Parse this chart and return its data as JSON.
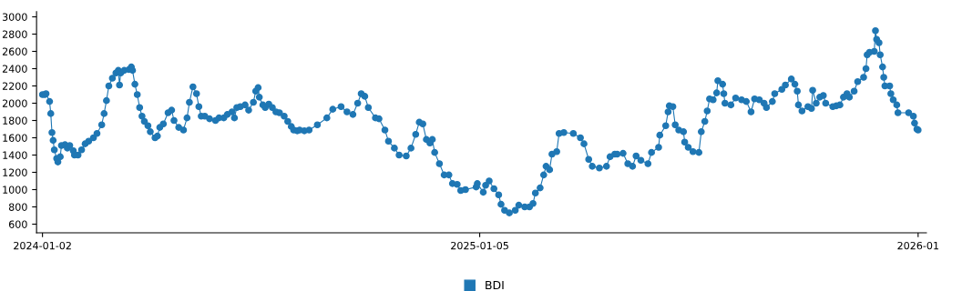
{
  "chart_data": {
    "type": "line",
    "marker": "circle",
    "line_style": "solid",
    "grid": false,
    "legend": "bottom",
    "xlim": [
      "2023-12-28",
      "2026-01-17"
    ],
    "xticks": [
      {
        "value": "2024-01-02",
        "label": "2024-01-02"
      },
      {
        "value": "2025-01-05",
        "label": "2025-01-05"
      },
      {
        "value": "2026-01-10",
        "label": "2026-01"
      }
    ],
    "ylim": [
      500,
      3060
    ],
    "yticks": [
      600,
      800,
      1000,
      1200,
      1400,
      1600,
      1800,
      2000,
      2200,
      2400,
      2600,
      2800,
      3000
    ],
    "x": [
      "2024-01-02",
      "2024-01-04",
      "2024-01-05",
      "2024-01-08",
      "2024-01-09",
      "2024-01-10",
      "2024-01-11",
      "2024-01-12",
      "2024-01-14",
      "2024-01-15",
      "2024-01-17",
      "2024-01-18",
      "2024-01-21",
      "2024-01-23",
      "2024-01-25",
      "2024-01-28",
      "2024-01-29",
      "2024-02-01",
      "2024-02-04",
      "2024-02-07",
      "2024-02-10",
      "2024-02-14",
      "2024-02-17",
      "2024-02-21",
      "2024-02-23",
      "2024-02-25",
      "2024-02-27",
      "2024-03-01",
      "2024-03-04",
      "2024-03-06",
      "2024-03-07",
      "2024-03-08",
      "2024-03-11",
      "2024-03-15",
      "2024-03-17",
      "2024-03-18",
      "2024-03-20",
      "2024-03-22",
      "2024-03-24",
      "2024-03-26",
      "2024-03-28",
      "2024-03-31",
      "2024-04-02",
      "2024-04-06",
      "2024-04-08",
      "2024-04-10",
      "2024-04-13",
      "2024-04-17",
      "2024-04-20",
      "2024-04-22",
      "2024-04-26",
      "2024-04-30",
      "2024-05-03",
      "2024-05-05",
      "2024-05-08",
      "2024-05-11",
      "2024-05-13",
      "2024-05-15",
      "2024-05-18",
      "2024-05-22",
      "2024-05-27",
      "2024-05-30",
      "2024-06-03",
      "2024-06-06",
      "2024-06-10",
      "2024-06-12",
      "2024-06-14",
      "2024-06-17",
      "2024-06-21",
      "2024-06-24",
      "2024-06-28",
      "2024-06-30",
      "2024-07-02",
      "2024-07-03",
      "2024-07-06",
      "2024-07-08",
      "2024-07-11",
      "2024-07-14",
      "2024-07-17",
      "2024-07-20",
      "2024-07-24",
      "2024-07-27",
      "2024-07-30",
      "2024-08-01",
      "2024-08-04",
      "2024-08-06",
      "2024-08-10",
      "2024-08-14",
      "2024-08-21",
      "2024-08-29",
      "2024-09-03",
      "2024-09-10",
      "2024-09-15",
      "2024-09-20",
      "2024-09-24",
      "2024-09-27",
      "2024-09-30",
      "2024-10-03",
      "2024-10-09",
      "2024-10-12",
      "2024-10-17",
      "2024-10-20",
      "2024-10-25",
      "2024-10-29",
      "2024-11-04",
      "2024-11-08",
      "2024-11-12",
      "2024-11-15",
      "2024-11-18",
      "2024-11-21",
      "2024-11-24",
      "2024-11-26",
      "2024-11-28",
      "2024-12-02",
      "2024-12-06",
      "2024-12-10",
      "2024-12-13",
      "2024-12-17",
      "2024-12-20",
      "2024-12-24",
      "2025-01-02",
      "2025-01-03",
      "2025-01-08",
      "2025-01-10",
      "2025-01-13",
      "2025-01-17",
      "2025-01-21",
      "2025-01-23",
      "2025-01-26",
      "2025-01-30",
      "2025-02-04",
      "2025-02-07",
      "2025-02-12",
      "2025-02-16",
      "2025-02-19",
      "2025-02-21",
      "2025-02-25",
      "2025-02-28",
      "2025-03-02",
      "2025-03-05",
      "2025-03-07",
      "2025-03-11",
      "2025-03-13",
      "2025-03-17",
      "2025-03-25",
      "2025-03-31",
      "2025-04-03",
      "2025-04-07",
      "2025-04-10",
      "2025-04-16",
      "2025-04-22",
      "2025-04-25",
      "2025-04-29",
      "2025-05-01",
      "2025-05-06",
      "2025-05-10",
      "2025-05-14",
      "2025-05-17",
      "2025-05-21",
      "2025-05-27",
      "2025-05-30",
      "2025-06-05",
      "2025-06-06",
      "2025-06-11",
      "2025-06-13",
      "2025-06-14",
      "2025-06-17",
      "2025-06-19",
      "2025-06-22",
      "2025-06-26",
      "2025-06-27",
      "2025-06-30",
      "2025-07-04",
      "2025-07-09",
      "2025-07-11",
      "2025-07-14",
      "2025-07-16",
      "2025-07-18",
      "2025-07-21",
      "2025-07-24",
      "2025-07-25",
      "2025-07-29",
      "2025-07-30",
      "2025-07-31",
      "2025-08-05",
      "2025-08-09",
      "2025-08-14",
      "2025-08-18",
      "2025-08-22",
      "2025-08-25",
      "2025-08-29",
      "2025-09-02",
      "2025-09-04",
      "2025-09-09",
      "2025-09-11",
      "2025-09-17",
      "2025-09-20",
      "2025-09-25",
      "2025-09-28",
      "2025-09-30",
      "2025-10-01",
      "2025-10-04",
      "2025-10-09",
      "2025-10-12",
      "2025-10-13",
      "2025-10-16",
      "2025-10-19",
      "2025-10-22",
      "2025-10-24",
      "2025-10-30",
      "2025-11-02",
      "2025-11-05",
      "2025-11-08",
      "2025-11-11",
      "2025-11-13",
      "2025-11-17",
      "2025-11-20",
      "2025-11-25",
      "2025-11-27",
      "2025-11-28",
      "2025-11-30",
      "2025-12-04",
      "2025-12-05",
      "2025-12-06",
      "2025-12-08",
      "2025-12-09",
      "2025-12-11",
      "2025-12-12",
      "2025-12-13",
      "2025-12-17",
      "2025-12-18",
      "2025-12-20",
      "2025-12-23",
      "2025-12-24",
      "2026-01-02",
      "2026-01-06",
      "2026-01-07",
      "2026-01-09",
      "2026-01-10"
    ],
    "series": [
      {
        "name": "BDI",
        "color": "#1f77b4",
        "values": [
          2100,
          2100,
          2110,
          2020,
          1880,
          1660,
          1570,
          1460,
          1360,
          1320,
          1380,
          1510,
          1520,
          1480,
          1510,
          1450,
          1400,
          1400,
          1460,
          1530,
          1560,
          1600,
          1650,
          1750,
          1880,
          2030,
          2200,
          2290,
          2350,
          2380,
          2210,
          2350,
          2380,
          2390,
          2420,
          2380,
          2220,
          2100,
          1950,
          1850,
          1790,
          1740,
          1670,
          1600,
          1620,
          1720,
          1760,
          1890,
          1920,
          1800,
          1720,
          1690,
          1830,
          2010,
          2190,
          2110,
          1960,
          1850,
          1850,
          1820,
          1800,
          1830,
          1830,
          1870,
          1900,
          1830,
          1950,
          1960,
          1980,
          1920,
          2010,
          2140,
          2180,
          2070,
          1980,
          1950,
          1990,
          1950,
          1900,
          1890,
          1850,
          1790,
          1730,
          1690,
          1680,
          1690,
          1680,
          1690,
          1750,
          1830,
          1930,
          1960,
          1900,
          1870,
          2000,
          2110,
          2080,
          1950,
          1830,
          1820,
          1690,
          1560,
          1480,
          1400,
          1390,
          1480,
          1640,
          1780,
          1760,
          1580,
          1540,
          1580,
          1430,
          1300,
          1170,
          1170,
          1070,
          1060,
          990,
          1000,
          1030,
          1070,
          970,
          1050,
          1100,
          1010,
          940,
          830,
          760,
          730,
          760,
          820,
          800,
          800,
          840,
          960,
          1020,
          1170,
          1270,
          1230,
          1410,
          1440,
          1650,
          1660,
          1650,
          1600,
          1530,
          1350,
          1270,
          1250,
          1270,
          1380,
          1410,
          1410,
          1420,
          1300,
          1270,
          1390,
          1340,
          1300,
          1430,
          1490,
          1630,
          1740,
          1900,
          1970,
          1960,
          1750,
          1690,
          1670,
          1550,
          1490,
          1440,
          1430,
          1670,
          1790,
          1910,
          2050,
          2040,
          2120,
          2260,
          2220,
          2110,
          2000,
          1980,
          2060,
          2040,
          2020,
          1900,
          2050,
          2040,
          2000,
          1950,
          2020,
          2110,
          2160,
          2210,
          2280,
          2220,
          2140,
          1980,
          1910,
          1960,
          1940,
          2150,
          2000,
          2070,
          2090,
          2000,
          1960,
          1970,
          1980,
          2070,
          2110,
          2070,
          2140,
          2250,
          2300,
          2400,
          2560,
          2590,
          2600,
          2840,
          2740,
          2700,
          2560,
          2420,
          2300,
          2200,
          2200,
          2110,
          2040,
          1980,
          1890,
          1890,
          1850,
          1770,
          1700,
          1690
        ]
      }
    ]
  }
}
